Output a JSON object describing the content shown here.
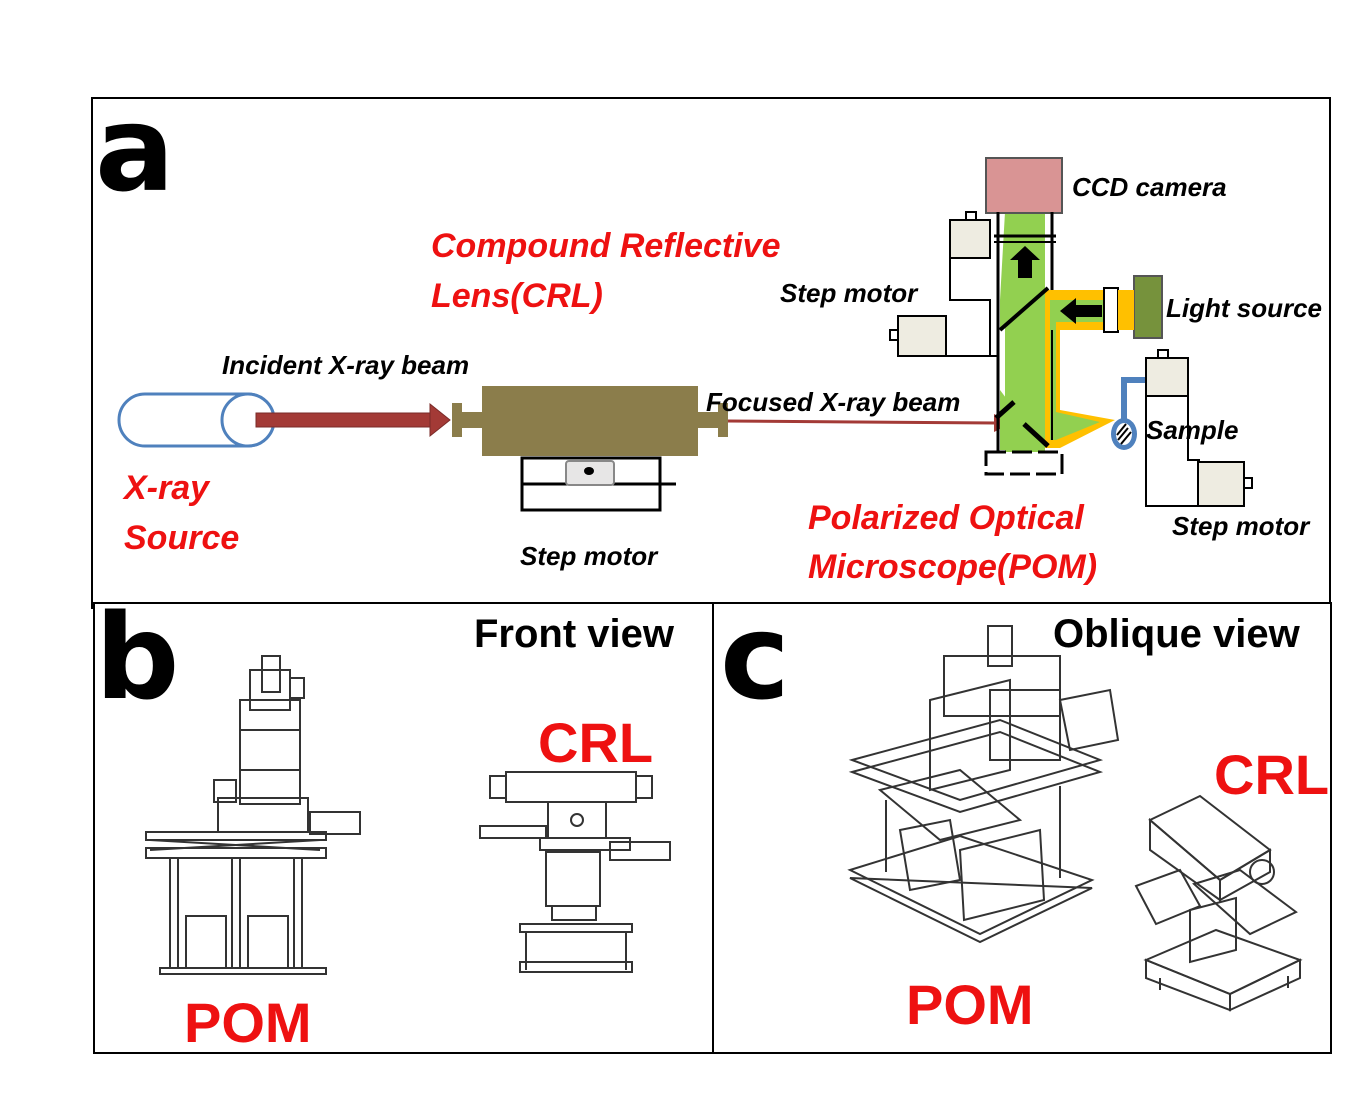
{
  "panel_a": {
    "letter": "a",
    "xray_source": [
      "X-ray",
      "Source"
    ],
    "incident_beam": "Incident X-ray beam",
    "crl_label": [
      "Compound Reflective",
      "Lens(CRL)"
    ],
    "focused_beam": "Focused X-ray beam",
    "step_motor_crl": "Step motor",
    "pom_label": [
      "Polarized Optical",
      "Microscope(POM)"
    ],
    "ccd_camera": "CCD camera",
    "step_motor_top": "Step motor",
    "light_source": "Light source",
    "sample": "Sample",
    "step_motor_sample": "Step motor"
  },
  "panel_b": {
    "letter": "b",
    "title": "Front view",
    "crl": "CRL",
    "pom": "POM"
  },
  "panel_c": {
    "letter": "c",
    "title": "Oblique view",
    "crl": "CRL",
    "pom": "POM"
  },
  "colors": {
    "red_text": "#ee1111",
    "beam": "#a33a36",
    "crl_body": "#8b7d4b",
    "ccd": "#d99494",
    "green_path": "#92d050",
    "yellow_path": "#ffc000",
    "source_outline": "#4f81bd"
  }
}
